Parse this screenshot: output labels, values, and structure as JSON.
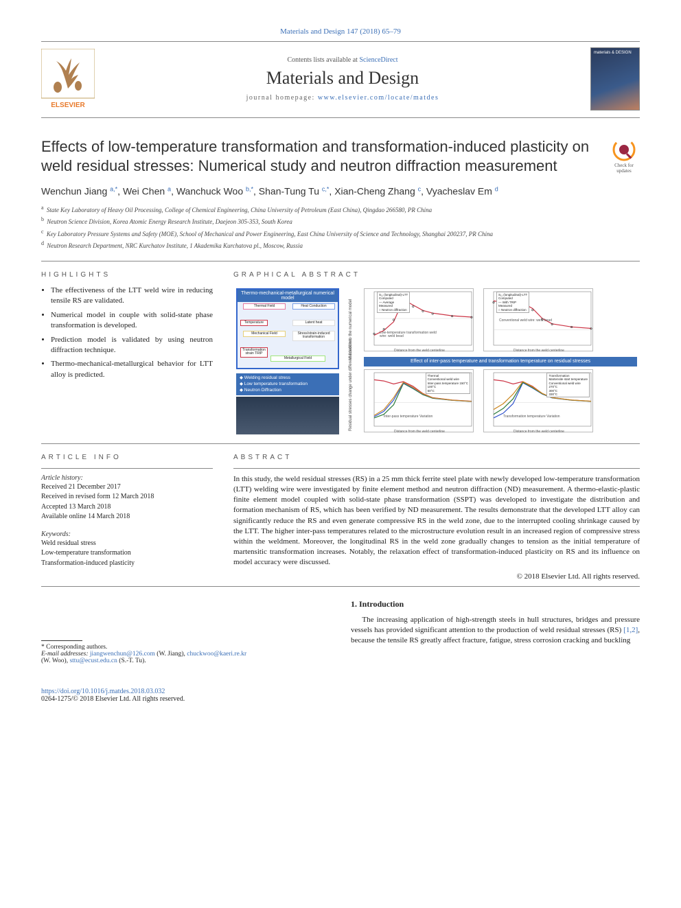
{
  "citation": "Materials and Design 147 (2018) 65–79",
  "header": {
    "contents_pre": "Contents lists available at ",
    "contents_link": "ScienceDirect",
    "journal_name": "Materials and Design",
    "homepage_label": "journal homepage: ",
    "homepage_url": "www.elsevier.com/locate/matdes"
  },
  "updates_badge": {
    "line1": "Check for",
    "line2": "updates",
    "ring_color": "#f7941e",
    "lens_color": "#9b2743"
  },
  "title": "Effects of low-temperature transformation and transformation-induced plasticity on weld residual stresses: Numerical study and neutron diffraction measurement",
  "authors_ordered": [
    "Wenchun Jiang",
    "Wei Chen",
    "Wanchuck Woo",
    "Shan-Tung Tu",
    "Xian-Cheng Zhang",
    "Vyacheslav Em"
  ],
  "authors": {
    "a1": {
      "name": "Wenchun Jiang",
      "sup": "a,*"
    },
    "a2": {
      "name": "Wei Chen",
      "sup": "a"
    },
    "a3": {
      "name": "Wanchuck Woo",
      "sup": "b,*"
    },
    "a4": {
      "name": "Shan-Tung Tu",
      "sup": "c,*"
    },
    "a5": {
      "name": "Xian-Cheng Zhang",
      "sup": "c"
    },
    "a6": {
      "name": "Vyacheslav Em",
      "sup": "d"
    }
  },
  "affiliations": {
    "a": "State Key Laboratory of Heavy Oil Processing, College of Chemical Engineering, China University of Petroleum (East China), Qingdao 266580, PR China",
    "b": "Neutron Science Division, Korea Atomic Energy Research Institute, Daejeon 305-353, South Korea",
    "c": "Key Laboratory Pressure Systems and Safety (MOE), School of Mechanical and Power Engineering, East China University of Science and Technology, Shanghai 200237, PR China",
    "d": "Neutron Research Department, NRC Kurchatov Institute, 1 Akademika Kurchatova pl., Moscow, Russia"
  },
  "sections": {
    "highlights": "HIGHLIGHTS",
    "ga": "GRAPHICAL ABSTRACT",
    "article_info": "ARTICLE INFO",
    "abstract": "ABSTRACT",
    "intro": "1. Introduction"
  },
  "highlights": [
    "The effectiveness of the LTT weld wire in reducing tensile RS are validated.",
    "Numerical model in couple with solid-state phase transformation is developed.",
    "Prediction model is validated by using neutron diffraction technique.",
    "Thermo-mechanical-metallurgical behavior for LTT alloy is predicted."
  ],
  "article_info": {
    "history_label": "Article history:",
    "history": [
      "Received 21 December 2017",
      "Received in revised form 12 March 2018",
      "Accepted 13 March 2018",
      "Available online 14 March 2018"
    ],
    "keywords_label": "Keywords:",
    "keywords": [
      "Weld residual stress",
      "Low-temperature transformation",
      "Transformation-induced plasticity"
    ]
  },
  "abstract_text": "In this study, the weld residual stresses (RS) in a 25 mm thick ferrite steel plate with newly developed low-temperature transformation (LTT) welding wire were investigated by finite element method and neutron diffraction (ND) measurement. A thermo-elastic-plastic finite element model coupled with solid-state phase transformation (SSPT) was developed to investigate the distribution and formation mechanism of RS, which has been verified by ND measurement. The results demonstrate that the developed LTT alloy can significantly reduce the RS and even generate compressive RS in the weld zone, due to the interrupted cooling shrinkage caused by the LTT. The higher inter-pass temperatures related to the microstructure evolution result in an increased region of compressive stress within the weldment. Moreover, the longitudinal RS in the weld zone gradually changes to tension as the initial temperature of martensitic transformation increases. Notably, the relaxation effect of transformation-induced plasticity on RS and its influence on model accuracy were discussed.",
  "copyright": "© 2018 Elsevier Ltd. All rights reserved.",
  "intro_text_pre": "The increasing application of high-strength steels in hull structures, bridges and pressure vessels has provided significant attention to the production of weld residual stresses (RS) ",
  "intro_refs": "[1,2]",
  "intro_text_post": ", because the tensile RS greatly affect fracture, fatigue, stress corrosion cracking and buckling",
  "footnotes": {
    "corr_label": "* Corresponding authors.",
    "email_label": "E-mail addresses:",
    "emails": [
      {
        "addr": "jiangwenchun@126.com",
        "who": "(W. Jiang)"
      },
      {
        "addr": "chuckwoo@kaeri.re.kr",
        "who": "(W. Woo)"
      },
      {
        "addr": "sttu@ecust.edu.cn",
        "who": "(S.-T. Tu)"
      }
    ]
  },
  "doi": {
    "url": "https://doi.org/10.1016/j.matdes.2018.03.032",
    "issn_line": "0264-1275/© 2018 Elsevier Ltd. All rights reserved."
  },
  "elsevier_logo": {
    "tree_fill": "#b08050",
    "border": "#c0a060",
    "label": "ELSEVIER",
    "label_color": "#e8792a"
  },
  "ga_figure": {
    "left_box": {
      "title": "Thermo-mechanical-metallurgical numerical model",
      "border_color": "#3366cc",
      "panels": {
        "thermal": {
          "label": "Thermal Field",
          "color": "#e67aa0",
          "items": [
            "Convection Radiation Conduction"
          ]
        },
        "heat": {
          "label": "Heat Conduction",
          "color": "#7aa0e6",
          "items": []
        },
        "temp": {
          "label": "Temperature",
          "color": "#cc3344"
        },
        "latent": {
          "label": "Latent heat",
          "color": "#999"
        },
        "mech": {
          "label": "Mechanical Field",
          "color": "#e6d07a",
          "items": [
            "Stress-Strain"
          ]
        },
        "trip": {
          "label": "Stress/strain-induced transformation",
          "color": "#999"
        },
        "trans": {
          "label": "Transformation strain TRIP",
          "color": "#999"
        },
        "metal": {
          "label": "Metallurgical Field",
          "color": "#a0e67a",
          "items": [
            "Phase Transformation"
          ]
        }
      }
    },
    "bullets": [
      "Welding residual stress",
      "Low temperature transformation",
      "Neutron Diffraction"
    ],
    "rot_labels": {
      "top": "Validation to the numerical model",
      "bottom": "Residual stresses change under different condition"
    },
    "band_label": "Effect of inter-pass temperature and transformation temperature on residual stresses",
    "charts": {
      "top_left": {
        "title": "",
        "xlabel": "Distance from the weld centerline",
        "legend": [
          "S₁₁ (longitudinal)-LTT",
          "Computed",
          "— Average",
          "Measured",
          "○ Neutron diffraction"
        ],
        "annotation": "Low-temperature transformation weld wire: weld bead",
        "curve_color": "#cc3344",
        "marker_color": "#333",
        "x": [
          0,
          0.1,
          0.2,
          0.3,
          0.4,
          0.5,
          0.6,
          0.8,
          1.0
        ],
        "y_curve": [
          -250,
          -180,
          -50,
          280,
          200,
          120,
          80,
          40,
          20
        ],
        "y_markers": [
          -230,
          -160,
          -20,
          260,
          180,
          110,
          70,
          35,
          18
        ],
        "ylim": [
          -400,
          400
        ]
      },
      "top_right": {
        "title": "",
        "xlabel": "Distance from the weld centerline",
        "legend": [
          "S₁₁ (longitudinal)-LTT",
          "Computed",
          "— With TRIP",
          "Measured",
          "○ Neutron diffraction"
        ],
        "annotation": "Conventional weld wire: weld bead",
        "curve_color": "#cc3344",
        "marker_color": "#333",
        "x": [
          0,
          0.1,
          0.2,
          0.3,
          0.4,
          0.5,
          0.6,
          0.8,
          1.0
        ],
        "y_curve": [
          380,
          360,
          300,
          350,
          280,
          150,
          80,
          40,
          20
        ],
        "y_markers": [
          360,
          340,
          280,
          330,
          260,
          140,
          75,
          38,
          18
        ],
        "ylim": [
          -200,
          500
        ]
      },
      "bot_left": {
        "xlabel": "Distance from the weld centerline",
        "legend_title": "Thermal",
        "legend": [
          "Conventional weld wire",
          "Inter-pass temperature 150°C",
          "100°C",
          "50°C"
        ],
        "annotation": "Inter-pass temperature Variation",
        "colors": [
          "#cc3344",
          "#2a7a3a",
          "#3355cc",
          "#cc8822"
        ],
        "x": [
          0,
          0.1,
          0.2,
          0.3,
          0.4,
          0.5,
          0.6,
          0.8,
          1.0
        ],
        "series": [
          [
            380,
            360,
            310,
            350,
            270,
            150,
            80,
            40,
            20
          ],
          [
            -260,
            -200,
            -40,
            320,
            230,
            130,
            70,
            35,
            15
          ],
          [
            -240,
            -150,
            40,
            330,
            240,
            140,
            75,
            36,
            16
          ],
          [
            -220,
            -120,
            80,
            340,
            250,
            145,
            78,
            38,
            18
          ]
        ],
        "ylim": [
          -400,
          500
        ]
      },
      "bot_right": {
        "xlabel": "Distance from the weld centerline",
        "legend_title": "Transformation",
        "legend": [
          "Martensite start temperature",
          "Conventional weld wire",
          "270°C",
          "300°C",
          "330°C"
        ],
        "annotation": "Transformation temperature Variation",
        "colors": [
          "#cc3344",
          "#3355cc",
          "#2a7a3a",
          "#cc8822"
        ],
        "x": [
          0,
          0.1,
          0.2,
          0.3,
          0.4,
          0.5,
          0.6,
          0.8,
          1.0
        ],
        "series": [
          [
            380,
            360,
            310,
            350,
            270,
            150,
            80,
            40,
            20
          ],
          [
            -260,
            -180,
            -20,
            330,
            240,
            140,
            75,
            36,
            16
          ],
          [
            -200,
            -100,
            60,
            340,
            250,
            145,
            78,
            38,
            18
          ],
          [
            -120,
            -20,
            140,
            350,
            260,
            150,
            80,
            40,
            20
          ]
        ],
        "ylim": [
          -400,
          500
        ]
      }
    },
    "chart_style": {
      "bg": "#ffffff",
      "axis_color": "#666",
      "fontsize": 5,
      "line_width": 1.2
    }
  }
}
